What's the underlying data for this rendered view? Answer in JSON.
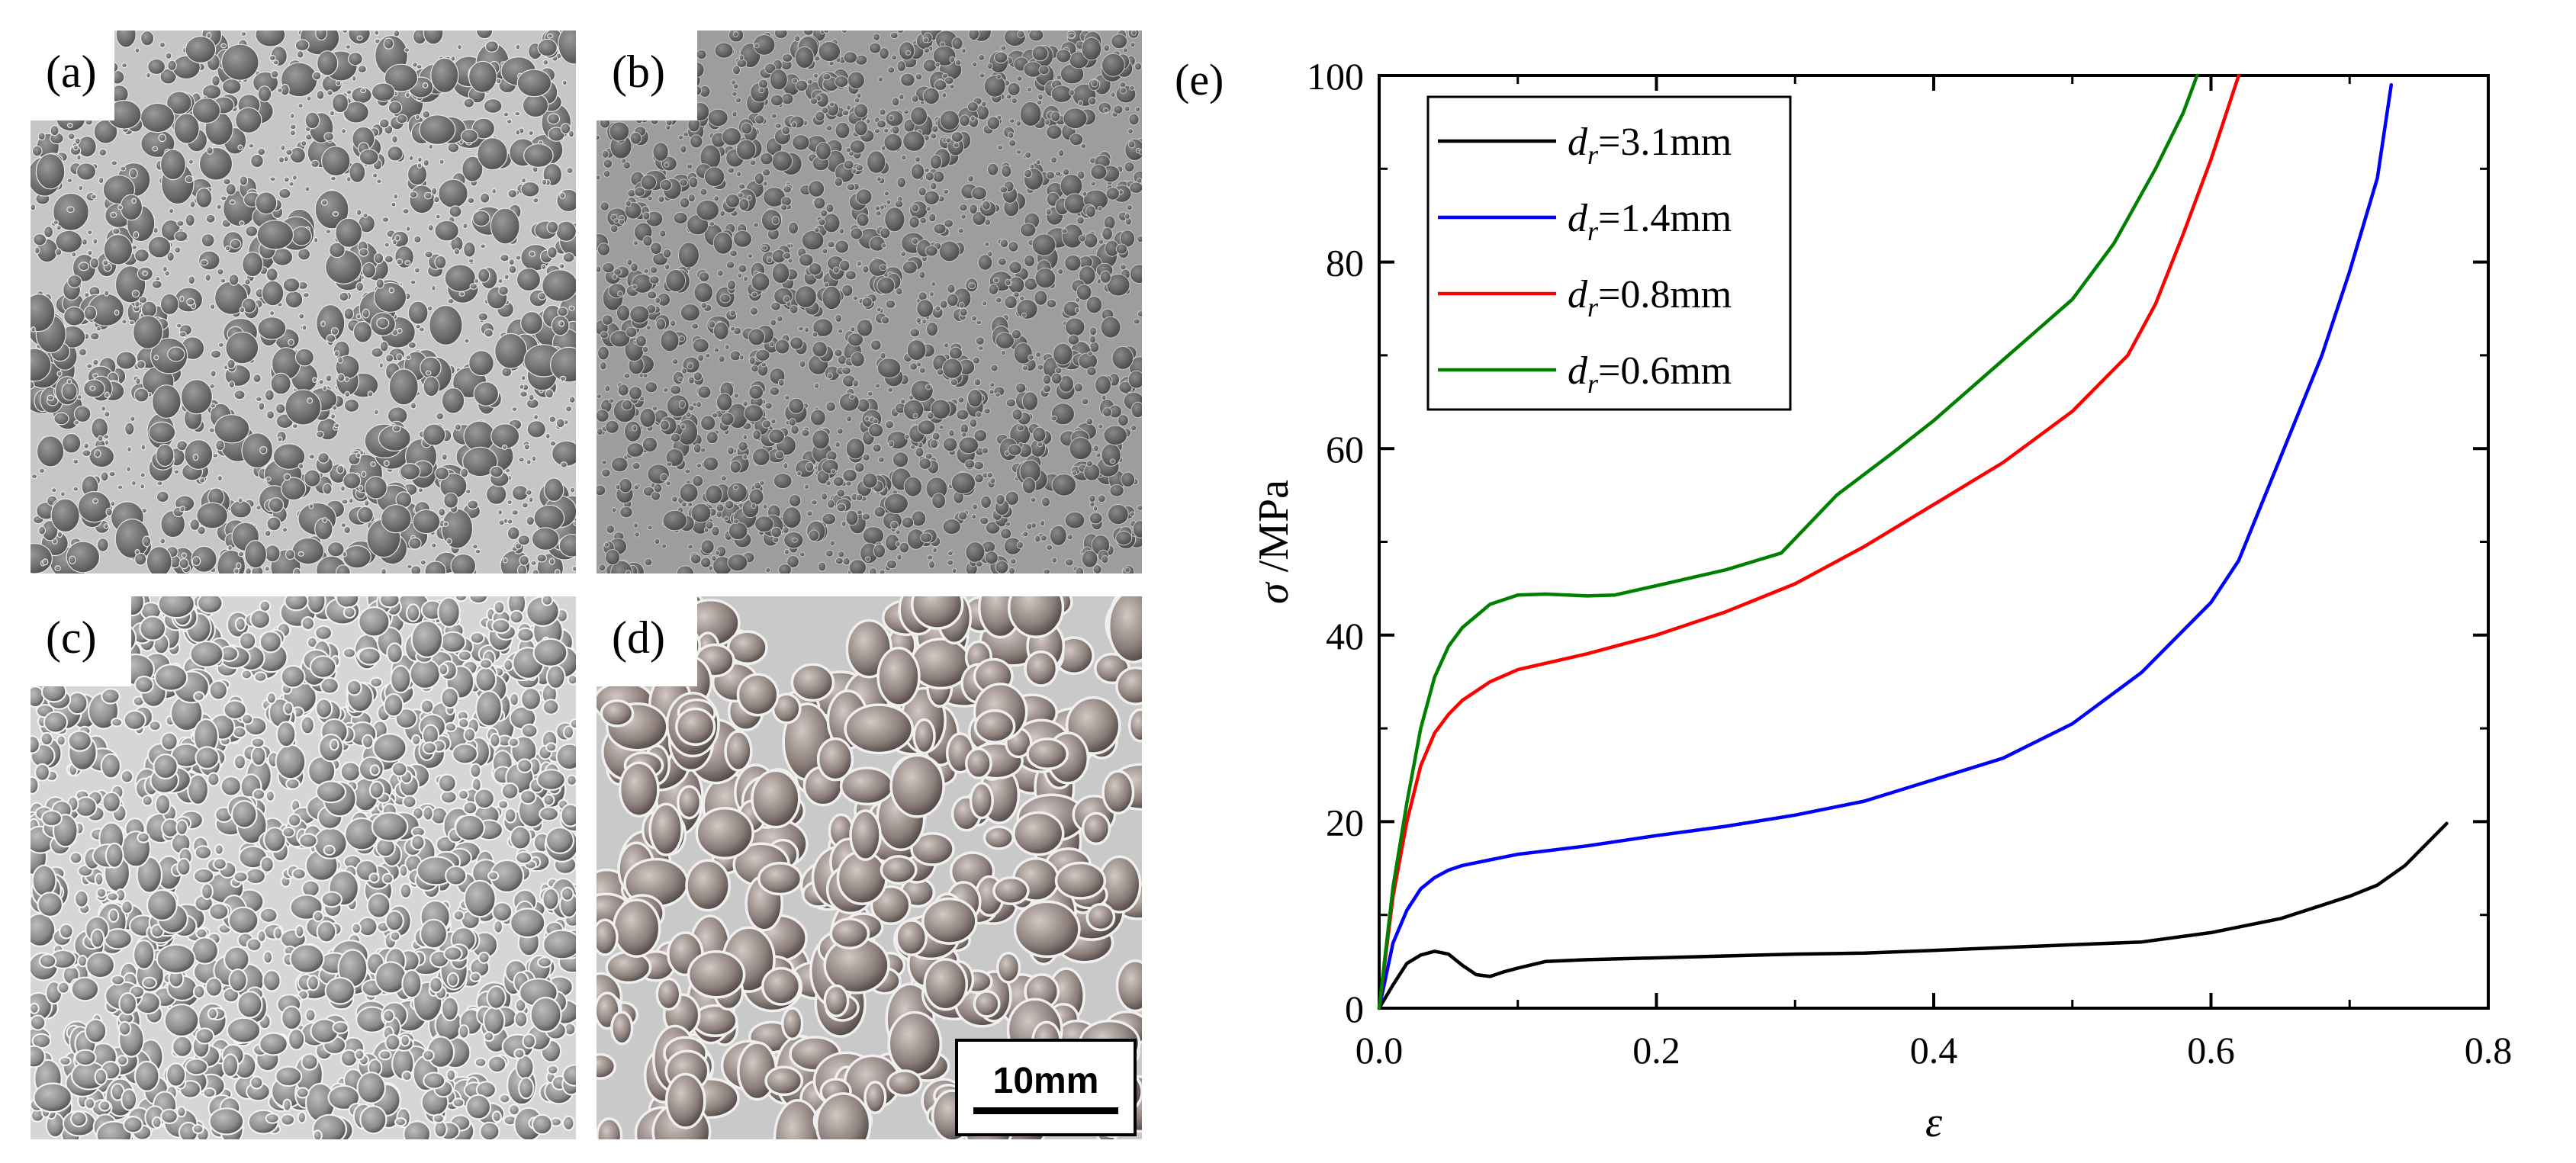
{
  "panels": {
    "a": {
      "label": "(a)"
    },
    "b": {
      "label": "(b)"
    },
    "c": {
      "label": "(c)"
    },
    "d": {
      "label": "(d)"
    },
    "e": {
      "label": "(e)"
    }
  },
  "scale_bar": {
    "label": "10mm"
  },
  "colors": {
    "series_3_1": "#000000",
    "series_1_4": "#0000ff",
    "series_0_8": "#ff0000",
    "series_0_6": "#008000"
  },
  "chart_data": {
    "type": "line",
    "title": "",
    "xlabel": "ε",
    "ylabel_symbol": "σ",
    "ylabel_unit": "/MPa",
    "xlim": [
      0.0,
      0.8
    ],
    "ylim": [
      0,
      100
    ],
    "xticks": [
      "0.0",
      "0.2",
      "0.4",
      "0.6",
      "0.8"
    ],
    "yticks": [
      "0",
      "20",
      "40",
      "60",
      "80",
      "100"
    ],
    "legend_position": "top-left",
    "series": [
      {
        "name": "dr=3.1mm",
        "legend_symbol": "d",
        "legend_sub": "r",
        "legend_value": "=3.1mm",
        "color": "#000000",
        "x": [
          0.0,
          0.01,
          0.02,
          0.03,
          0.04,
          0.05,
          0.06,
          0.07,
          0.08,
          0.09,
          0.1,
          0.12,
          0.15,
          0.2,
          0.25,
          0.3,
          0.35,
          0.4,
          0.45,
          0.5,
          0.55,
          0.6,
          0.65,
          0.7,
          0.72,
          0.74,
          0.76,
          0.77
        ],
        "y": [
          0,
          2.5,
          4.8,
          5.7,
          6.1,
          5.8,
          4.6,
          3.6,
          3.4,
          3.9,
          4.3,
          5.0,
          5.2,
          5.4,
          5.6,
          5.8,
          5.9,
          6.2,
          6.5,
          6.8,
          7.1,
          8.1,
          9.6,
          12.0,
          13.2,
          15.3,
          18.3,
          19.8
        ]
      },
      {
        "name": "dr=1.4mm",
        "legend_symbol": "d",
        "legend_sub": "r",
        "legend_value": "=1.4mm",
        "color": "#0000ff",
        "x": [
          0.0,
          0.01,
          0.02,
          0.03,
          0.04,
          0.05,
          0.06,
          0.08,
          0.1,
          0.15,
          0.2,
          0.25,
          0.3,
          0.35,
          0.4,
          0.45,
          0.5,
          0.55,
          0.6,
          0.62,
          0.65,
          0.68,
          0.7,
          0.72,
          0.73
        ],
        "y": [
          0,
          7.0,
          10.5,
          12.8,
          14.0,
          14.8,
          15.3,
          15.9,
          16.5,
          17.4,
          18.5,
          19.5,
          20.7,
          22.2,
          24.5,
          26.8,
          30.5,
          36.0,
          43.5,
          48.0,
          59.0,
          70.0,
          79.0,
          89.0,
          99.0
        ]
      },
      {
        "name": "dr=0.8mm",
        "legend_symbol": "d",
        "legend_sub": "r",
        "legend_value": "=0.8mm",
        "color": "#ff0000",
        "x": [
          0.0,
          0.01,
          0.02,
          0.03,
          0.04,
          0.05,
          0.06,
          0.08,
          0.1,
          0.15,
          0.2,
          0.25,
          0.3,
          0.35,
          0.4,
          0.45,
          0.5,
          0.54,
          0.56,
          0.58,
          0.6,
          0.61,
          0.62
        ],
        "y": [
          0,
          12.0,
          20.0,
          26.0,
          29.5,
          31.5,
          33.0,
          35.0,
          36.3,
          38.0,
          40.0,
          42.5,
          45.5,
          49.5,
          54.0,
          58.5,
          64.0,
          70.0,
          75.5,
          83.0,
          91.0,
          95.5,
          100.0
        ]
      },
      {
        "name": "dr=0.6mm",
        "legend_symbol": "d",
        "legend_sub": "r",
        "legend_value": "=0.6mm",
        "color": "#008000",
        "x": [
          0.0,
          0.01,
          0.02,
          0.03,
          0.04,
          0.05,
          0.06,
          0.08,
          0.1,
          0.12,
          0.15,
          0.17,
          0.2,
          0.25,
          0.29,
          0.33,
          0.37,
          0.4,
          0.45,
          0.5,
          0.53,
          0.56,
          0.58,
          0.59
        ],
        "y": [
          0,
          13.0,
          22.0,
          30.0,
          35.5,
          38.8,
          40.8,
          43.3,
          44.3,
          44.4,
          44.2,
          44.3,
          45.3,
          47.0,
          48.8,
          55.0,
          59.5,
          63.0,
          69.5,
          76.0,
          82.0,
          90.0,
          96.0,
          100.0
        ]
      }
    ]
  }
}
